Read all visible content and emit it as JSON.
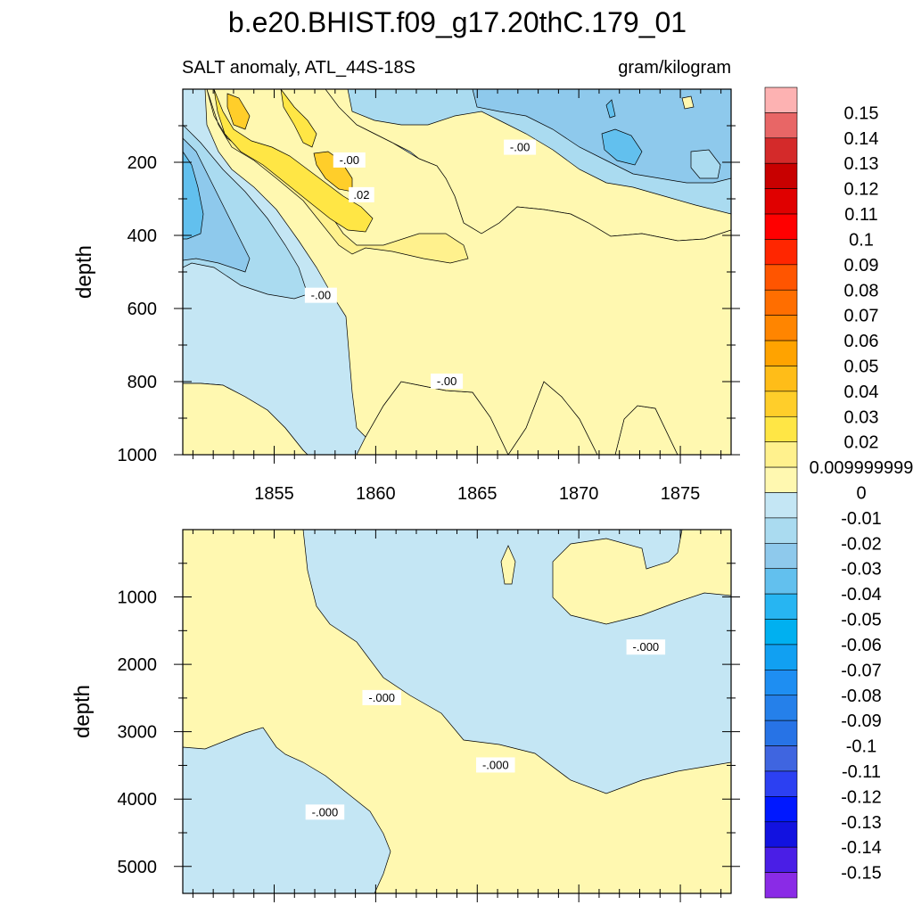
{
  "chart_data": {
    "type": "heatmap",
    "title": "b.e20.BHIST.f09_g17.20thC.179_01",
    "subtitle_left": "SALT anomaly, ATL_44S-18S",
    "subtitle_right": "gram/kilogram",
    "x_ticks": [
      "1855",
      "1860",
      "1865",
      "1870",
      "1875"
    ],
    "x_tick_values": [
      1855,
      1860,
      1865,
      1870,
      1875
    ],
    "xlim": [
      1850.5,
      1877.5
    ],
    "panels": [
      {
        "ylabel": "depth",
        "ylim": [
          0,
          1000
        ],
        "y_ticks": [
          "200",
          "400",
          "600",
          "800",
          "1000"
        ],
        "y_tick_values": [
          200,
          400,
          600,
          800,
          1000
        ],
        "contour_labels": [
          {
            "text": ".02",
            "x": 1859.3,
            "y": 290
          },
          {
            "text": "-.00",
            "x": 1858.7,
            "y": 195
          },
          {
            "text": "-.00",
            "x": 1867.1,
            "y": 160
          },
          {
            "text": "-.00",
            "x": 1857.3,
            "y": 565
          },
          {
            "text": "-.00",
            "x": 1863.5,
            "y": 800
          }
        ]
      },
      {
        "ylabel": "depth",
        "ylim": [
          0,
          5400
        ],
        "y_ticks": [
          "1000",
          "2000",
          "3000",
          "4000",
          "5000"
        ],
        "y_tick_values": [
          1000,
          2000,
          3000,
          4000,
          5000
        ],
        "contour_labels": [
          {
            "text": "-.000",
            "x": 1873.3,
            "y": 1750
          },
          {
            "text": "-.000",
            "x": 1860.3,
            "y": 2500
          },
          {
            "text": "-.000",
            "x": 1865.9,
            "y": 3500
          },
          {
            "text": "-.000",
            "x": 1857.5,
            "y": 4200
          }
        ]
      }
    ],
    "colorbar": {
      "labels": [
        "0.15",
        "0.14",
        "0.13",
        "0.12",
        "0.11",
        "0.1",
        "0.09",
        "0.08",
        "0.07",
        "0.06",
        "0.05",
        "0.04",
        "0.03",
        "0.02",
        "0.009999999",
        "0",
        "-0.01",
        "-0.02",
        "-0.03",
        "-0.04",
        "-0.05",
        "-0.06",
        "-0.07",
        "-0.08",
        "-0.09",
        "-0.1",
        "-0.11",
        "-0.12",
        "-0.13",
        "-0.14",
        "-0.15"
      ],
      "colors": [
        "#fdb2b2",
        "#e86666",
        "#d42a2a",
        "#c80000",
        "#e00000",
        "#ff0000",
        "#ff2600",
        "#ff5500",
        "#ff6e00",
        "#ff8500",
        "#ffa300",
        "#ffbd18",
        "#ffce2a",
        "#ffe645",
        "#fff18d",
        "#fff8b0",
        "#c4e6f4",
        "#aadbf0",
        "#8ec9ec",
        "#62c0ee",
        "#27b5f2",
        "#00b0f0",
        "#11a0f2",
        "#1e8ef2",
        "#2580ea",
        "#2773e6",
        "#3f65e0",
        "#2c40f2",
        "#0018ff",
        "#1212e0",
        "#4a1ee6",
        "#8a2be6"
      ]
    }
  }
}
